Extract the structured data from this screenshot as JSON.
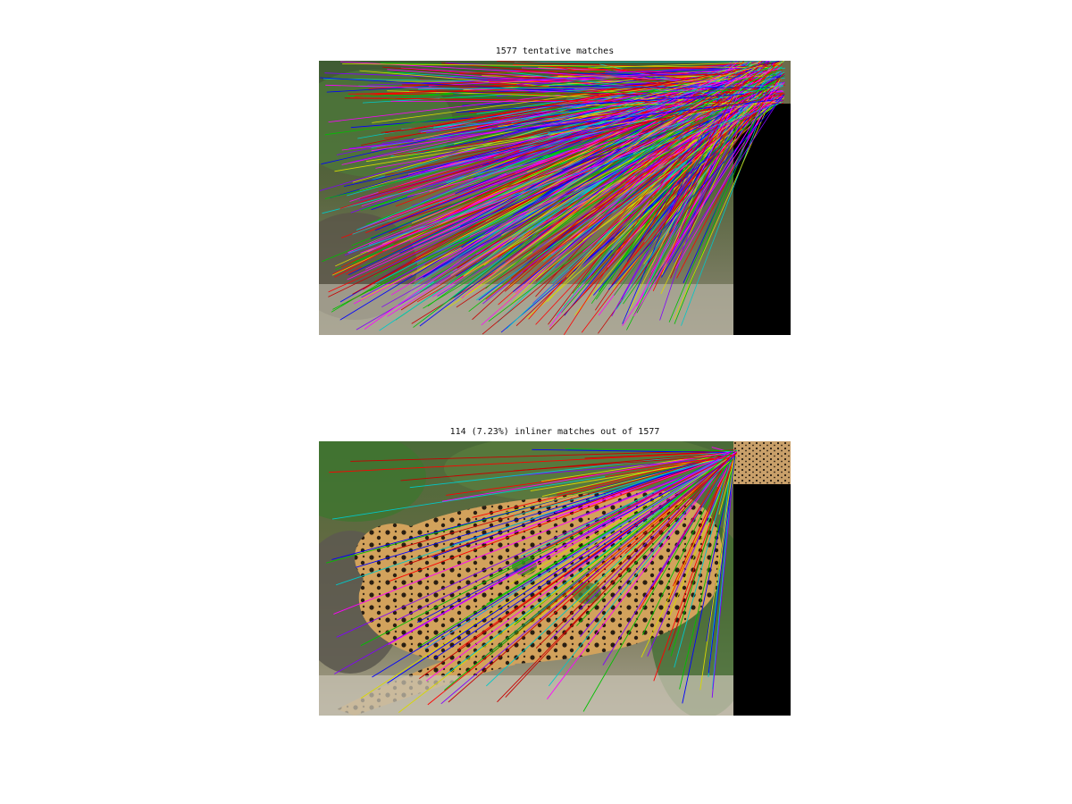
{
  "figure": {
    "top_title": "1577 tentative matches",
    "bottom_title": "114 (7.23%) inliner matches out of 1577"
  },
  "matches": {
    "tentative_count": 1577,
    "inlier_count": 114,
    "inlier_percent": 7.23
  },
  "palette": {
    "line_colors": [
      "#ff0000",
      "#00c000",
      "#0000ff",
      "#ff00ff",
      "#00c8c8",
      "#d8d800",
      "#c80000",
      "#8000ff"
    ],
    "background": "#ffffff",
    "pad": "#000000"
  },
  "images": {
    "scene": "jaguar-in-forest-photo",
    "template": "jaguar-thumbnail-photo"
  }
}
